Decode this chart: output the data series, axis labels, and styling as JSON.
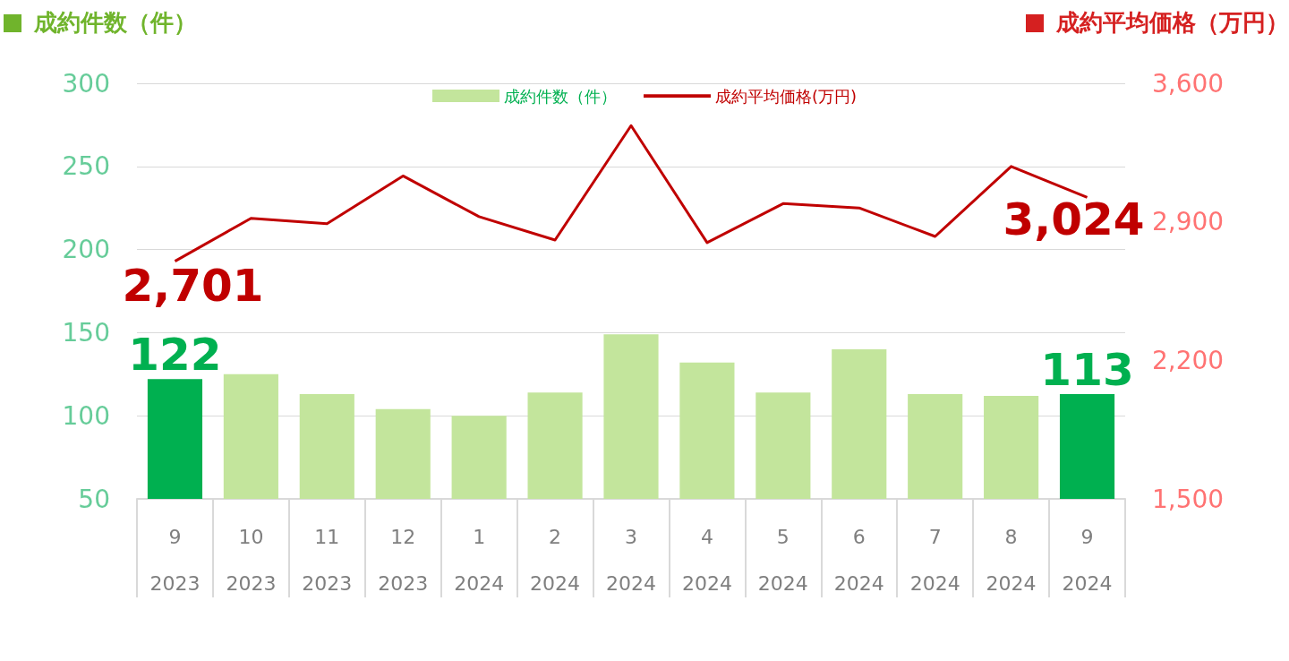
{
  "chart_data": {
    "type": "bar",
    "ylabel": "成約件数（件）",
    "y2label": "成約平均価格（万円）",
    "categories": [
      "9\n2023",
      "10\n2023",
      "11\n2023",
      "12\n2023",
      "1\n2024",
      "2\n2024",
      "3\n2024",
      "4\n2024",
      "5\n2024",
      "6\n2024",
      "7\n2024",
      "8\n2024",
      "9\n2024"
    ],
    "series": [
      {
        "name": "成約件数（件）",
        "color": "#c3e59c",
        "colors": [
          "#00b050",
          "#c3e59c",
          "#c3e59c",
          "#c3e59c",
          "#c3e59c",
          "#c3e59c",
          "#c3e59c",
          "#c3e59c",
          "#c3e59c",
          "#c3e59c",
          "#c3e59c",
          "#c3e59c",
          "#00b050"
        ],
        "values": [
          122,
          125,
          113,
          104,
          100,
          114,
          149,
          132,
          114,
          140,
          113,
          112,
          113
        ],
        "value_labels": [
          "122",
          null,
          null,
          null,
          null,
          null,
          null,
          null,
          null,
          null,
          null,
          null,
          "113"
        ]
      },
      {
        "name": "成約平均価格(万円)",
        "type": "line",
        "axis": "y2",
        "color": "#c00000",
        "values": [
          2701,
          2918,
          2891,
          3132,
          2926,
          2808,
          3386,
          2795,
          2992,
          2970,
          2826,
          3180,
          3024
        ],
        "value_labels": [
          "2,701",
          null,
          null,
          null,
          null,
          null,
          null,
          null,
          null,
          null,
          null,
          null,
          "3,024"
        ]
      }
    ],
    "ylim": [
      50,
      300
    ],
    "yticks": [
      50,
      100,
      150,
      200,
      250,
      300
    ],
    "y2lim": [
      1500,
      3600
    ],
    "y2ticks": [
      {
        "value": 1500,
        "label": "1,500"
      },
      {
        "value": 2200,
        "label": "2,200"
      },
      {
        "value": 2900,
        "label": "2,900"
      },
      {
        "value": 3600,
        "label": "3,600"
      }
    ],
    "grid": "y",
    "legend": "top",
    "marker": "none"
  }
}
